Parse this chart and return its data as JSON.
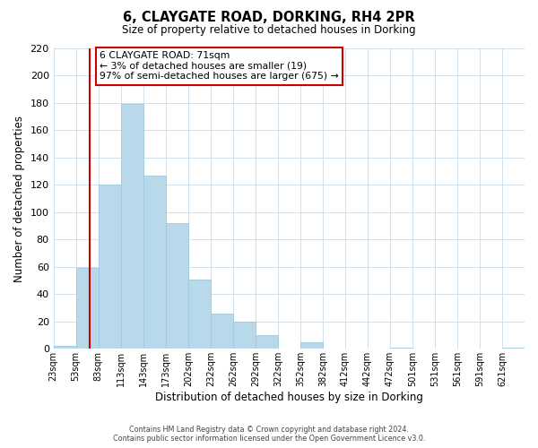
{
  "title": "6, CLAYGATE ROAD, DORKING, RH4 2PR",
  "subtitle": "Size of property relative to detached houses in Dorking",
  "xlabel": "Distribution of detached houses by size in Dorking",
  "ylabel": "Number of detached properties",
  "bar_color": "#b8d9ea",
  "bar_edge_color": "#9fc8de",
  "bin_labels": [
    "23sqm",
    "53sqm",
    "83sqm",
    "113sqm",
    "143sqm",
    "173sqm",
    "202sqm",
    "232sqm",
    "262sqm",
    "292sqm",
    "322sqm",
    "352sqm",
    "382sqm",
    "412sqm",
    "442sqm",
    "472sqm",
    "501sqm",
    "531sqm",
    "561sqm",
    "591sqm",
    "621sqm"
  ],
  "bar_heights": [
    2,
    59,
    120,
    179,
    127,
    92,
    51,
    26,
    20,
    10,
    0,
    5,
    0,
    0,
    0,
    1,
    0,
    0,
    0,
    0,
    1
  ],
  "ylim": [
    0,
    220
  ],
  "yticks": [
    0,
    20,
    40,
    60,
    80,
    100,
    120,
    140,
    160,
    180,
    200,
    220
  ],
  "vline_x_idx": 1,
  "vline_color": "#cc0000",
  "annotation_title": "6 CLAYGATE ROAD: 71sqm",
  "annotation_line1": "← 3% of detached houses are smaller (19)",
  "annotation_line2": "97% of semi-detached houses are larger (675) →",
  "annotation_box_color": "#ffffff",
  "annotation_border_color": "#cc0000",
  "footer1": "Contains HM Land Registry data © Crown copyright and database right 2024.",
  "footer2": "Contains public sector information licensed under the Open Government Licence v3.0.",
  "background_color": "#ffffff",
  "grid_color": "#cfe0ed",
  "n_bins": 21
}
